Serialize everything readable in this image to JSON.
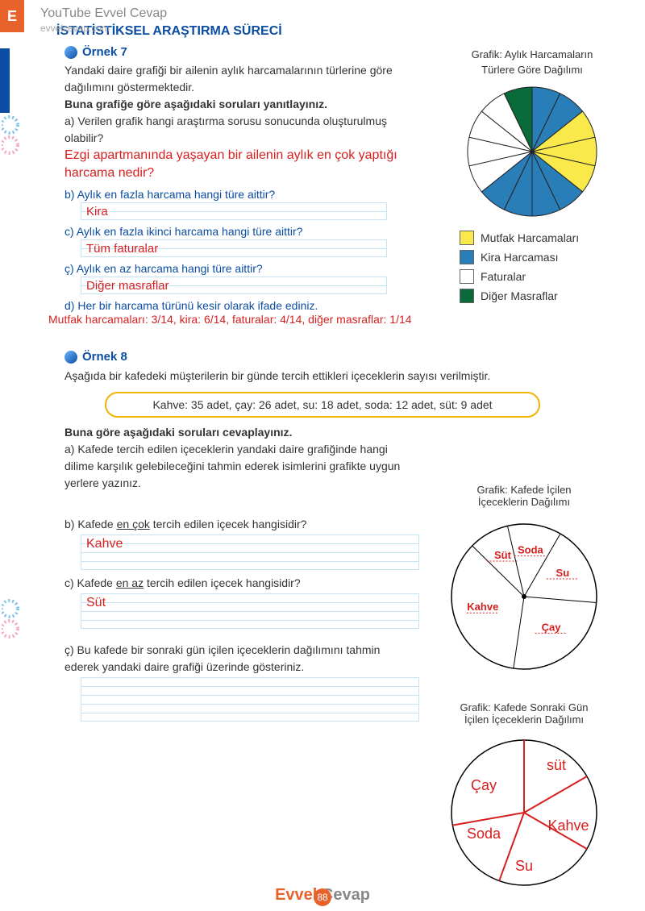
{
  "header": {
    "tab_letter": "E",
    "watermark_top": "YouTube Evvel Cevap",
    "watermark_url": "evvelcevap.com",
    "page_title": "İSTATİSTİKSEL ARAŞTIRMA SÜRECİ"
  },
  "ornek7": {
    "label": "Örnek 7",
    "intro": "Yandaki daire grafiği bir ailenin aylık harcamalarının türlerine göre dağılımını göstermektedir.",
    "instruction": "Buna grafiğe göre aşağıdaki soruları yanıtlayınız.",
    "qa": "a) Verilen grafik hangi araştırma sorusu sonucunda oluşturulmuş olabilir?",
    "ans_a": "Ezgi apartmanında yaşayan bir ailenin aylık en çok yaptığı harcama nedir?",
    "qb": "b) Aylık en fazla harcama hangi türe aittir?",
    "ans_b": "Kira",
    "qc": "c) Aylık en fazla ikinci harcama hangi türe aittir?",
    "ans_c": "Tüm faturalar",
    "qcc": "ç) Aylık en az harcama hangi türe aittir?",
    "ans_cc": "Diğer masraflar",
    "qd": "d) Her bir harcama türünü kesir olarak ifade ediniz.",
    "ans_d": "Mutfak harcamaları: 3/14, kira: 6/14, faturalar: 4/14, diğer masraflar: 1/14"
  },
  "pie1": {
    "title_l1": "Grafik: Aylık Harcamaların",
    "title_l2": "Türlere Göre Dağılımı",
    "slices": [
      {
        "color": "#2a7eb8",
        "count": 2
      },
      {
        "color": "#f9e94a",
        "count": 3
      },
      {
        "color": "#2a7eb8",
        "count": 4
      },
      {
        "color": "#ffffff",
        "count": 4
      },
      {
        "color": "#0a6b3a",
        "count": 1
      }
    ],
    "total": 14,
    "legend": [
      {
        "color": "#f9e94a",
        "label": "Mutfak Harcamaları"
      },
      {
        "color": "#2a7eb8",
        "label": "Kira Harcaması"
      },
      {
        "color": "#ffffff",
        "label": "Faturalar"
      },
      {
        "color": "#0a6b3a",
        "label": "Diğer Masraflar"
      }
    ]
  },
  "ornek8": {
    "label": "Örnek 8",
    "intro": "Aşağıda bir kafedeki müşterilerin bir günde tercih ettikleri içeceklerin sayısı verilmiştir.",
    "pill": "Kahve: 35 adet, çay: 26 adet, su: 18 adet, soda: 12 adet, süt: 9 adet",
    "instruction": "Buna göre aşağıdaki soruları cevaplayınız.",
    "qa": "a) Kafede tercih edilen içeceklerin yandaki daire grafiğinde hangi dilime karşılık gelebileceğini tahmin ederek isimlerini grafikte uygun yerlere yazınız.",
    "qb_pre": "b) Kafede ",
    "qb_u": "en çok",
    "qb_post": " tercih edilen içecek hangisidir?",
    "ans_b": "Kahve",
    "qc_pre": "c) Kafede ",
    "qc_u": "en az",
    "qc_post": " tercih edilen içecek hangisidir?",
    "ans_c": "Süt",
    "qcc": "ç) Bu kafede bir sonraki gün içilen içeceklerin dağılımını tahmin ederek yandaki daire grafiği üzerinde gösteriniz."
  },
  "pie2": {
    "title_l1": "Grafik: Kafede İçilen",
    "title_l2": "İçeceklerin Dağılımı",
    "labels": [
      "Su",
      "Soda",
      "Süt",
      "Çay",
      "Kahve"
    ],
    "values": [
      18,
      12,
      9,
      26,
      35
    ],
    "total": 100
  },
  "pie3": {
    "title_l1": "Grafik: Kafede Sonraki Gün",
    "title_l2": "İçilen İçeceklerin Dağılımı",
    "labels": [
      "süt",
      "Çay",
      "Soda",
      "Su",
      "Kahve"
    ]
  },
  "footer": {
    "brand1": "Evvel",
    "brand2": "Cevap",
    "page": "88"
  }
}
